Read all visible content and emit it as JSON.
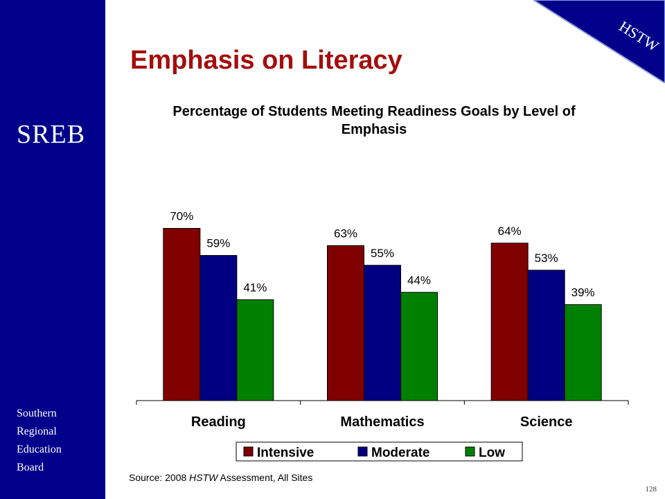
{
  "title": "Emphasis on Literacy",
  "logo": "SREB",
  "org_lines": [
    "Southern",
    "Regional",
    "Education",
    "Board"
  ],
  "corner_label": "HSTW",
  "page_number": "128",
  "source": {
    "prefix": "Source: 2008 ",
    "italic": "HSTW",
    "suffix": " Assessment, All Sites"
  },
  "colors": {
    "sidebar": "#00008b",
    "title": "#a50d0d"
  },
  "chart_data": {
    "type": "bar",
    "title": "Percentage of Students Meeting Readiness Goals by Level of Emphasis",
    "categories": [
      "Reading",
      "Mathematics",
      "Science"
    ],
    "series": [
      {
        "name": "Intensive",
        "values": [
          70,
          63,
          64
        ],
        "color": "#800000"
      },
      {
        "name": "Moderate",
        "values": [
          59,
          55,
          53
        ],
        "color": "#000080"
      },
      {
        "name": "Low",
        "values": [
          41,
          44,
          39
        ],
        "color": "#008000"
      }
    ],
    "value_suffix": "%",
    "ylim": [
      0,
      100
    ],
    "grid": false,
    "legend": "bottom"
  }
}
